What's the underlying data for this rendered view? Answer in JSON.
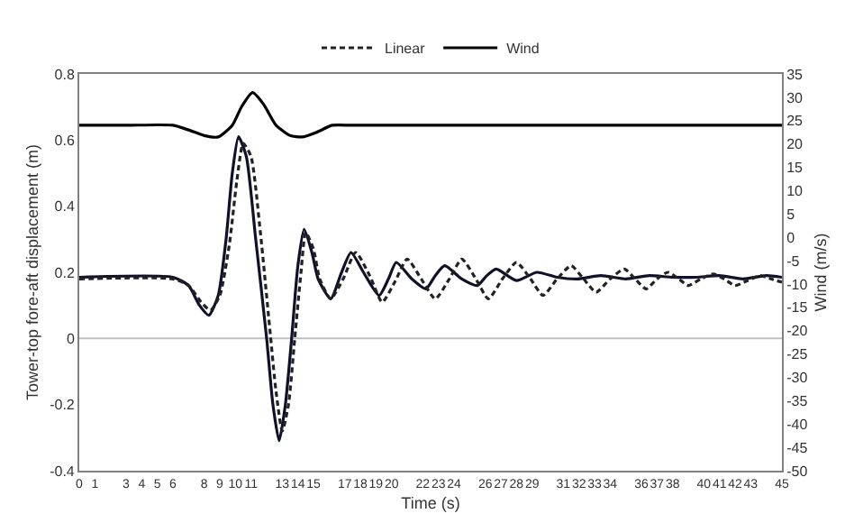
{
  "chart_data": {
    "type": "line",
    "xlabel": "Time (s)",
    "ylabel": "Tower-top fore-aft displacement (m)",
    "y2label": "Wind (m/s)",
    "legend": "top",
    "grid": false,
    "marker": "none",
    "xlim": [
      0,
      45
    ],
    "xticks": [
      0,
      1,
      3,
      4,
      5,
      6,
      8,
      9,
      10,
      11,
      13,
      14,
      15,
      17,
      18,
      19,
      20,
      22,
      23,
      24,
      26,
      27,
      28,
      29,
      31,
      32,
      33,
      34,
      36,
      37,
      38,
      40,
      41,
      42,
      43,
      45
    ],
    "ylim": [
      -0.4,
      0.8
    ],
    "yticks": [
      -0.4,
      -0.2,
      0,
      0.2,
      0.4,
      0.6,
      0.8
    ],
    "y2lim": [
      -50,
      35
    ],
    "y2ticks": [
      -50,
      -45,
      -40,
      -35,
      -30,
      -25,
      -20,
      -15,
      -10,
      -5,
      0,
      5,
      10,
      15,
      20,
      25,
      30,
      35
    ],
    "ref_lines": [
      {
        "axis": "y",
        "value": 0,
        "color": "#bfbfbf"
      }
    ],
    "series": [
      {
        "color": "#10102a",
        "line_style": "solid",
        "x": [
          0,
          6,
          7,
          7.7,
          8.3,
          8.9,
          9.4,
          9.8,
          10.2,
          10.7,
          11.3,
          12,
          12.4,
          12.8,
          13.2,
          13.6,
          14,
          14.4,
          14.9,
          15.3,
          16.1,
          16.8,
          17.4,
          18.2,
          19.2,
          19.8,
          20.3,
          21.3,
          22.2,
          22.8,
          23.4,
          24.5,
          25.5,
          26.1,
          26.7,
          28,
          29.3,
          30.6,
          31.9,
          33.4,
          35,
          36.5,
          38,
          39.5,
          41,
          42.5,
          44,
          45
        ],
        "values": [
          0.185,
          0.185,
          0.16,
          0.1,
          0.07,
          0.13,
          0.3,
          0.5,
          0.61,
          0.55,
          0.3,
          0,
          -0.2,
          -0.31,
          -0.2,
          0,
          0.22,
          0.33,
          0.26,
          0.18,
          0.12,
          0.2,
          0.26,
          0.2,
          0.13,
          0.18,
          0.23,
          0.18,
          0.15,
          0.19,
          0.22,
          0.18,
          0.16,
          0.19,
          0.21,
          0.175,
          0.2,
          0.185,
          0.18,
          0.19,
          0.18,
          0.19,
          0.185,
          0.185,
          0.19,
          0.18,
          0.19,
          0.185
        ]
      },
      {
        "name": "Linear",
        "color": "#222222",
        "line_style": "dashed",
        "x": [
          0,
          6,
          7,
          7.8,
          8.4,
          9,
          9.6,
          10.1,
          10.5,
          11,
          11.6,
          12.2,
          12.6,
          13,
          13.4,
          13.8,
          14.2,
          14.5,
          15,
          15.4,
          16.1,
          16.9,
          17.7,
          18.6,
          19.4,
          20.2,
          21,
          21.9,
          22.8,
          23.7,
          24.5,
          25.4,
          26.2,
          27.1,
          28,
          28.9,
          29.7,
          30.6,
          31.5,
          32.3,
          33.1,
          34,
          34.9,
          35.6,
          36.3,
          37,
          37.7,
          38.4,
          39,
          39.8,
          40.6,
          41.3,
          42,
          42.8,
          43.6,
          44.3,
          45
        ],
        "values": [
          0.18,
          0.18,
          0.16,
          0.11,
          0.085,
          0.13,
          0.28,
          0.48,
          0.59,
          0.55,
          0.32,
          0.03,
          -0.16,
          -0.28,
          -0.2,
          0,
          0.2,
          0.32,
          0.27,
          0.18,
          0.12,
          0.18,
          0.26,
          0.19,
          0.11,
          0.17,
          0.24,
          0.18,
          0.12,
          0.18,
          0.24,
          0.18,
          0.12,
          0.18,
          0.23,
          0.18,
          0.13,
          0.18,
          0.22,
          0.18,
          0.14,
          0.18,
          0.21,
          0.18,
          0.15,
          0.18,
          0.2,
          0.18,
          0.16,
          0.18,
          0.195,
          0.18,
          0.16,
          0.175,
          0.19,
          0.18,
          0.17
        ]
      },
      {
        "name": "Wind",
        "color": "#000000",
        "line_style": "solid",
        "axis": "y2",
        "x": [
          0,
          3,
          6,
          7,
          8,
          8.9,
          9.8,
          10.4,
          11.1,
          11.8,
          12.6,
          13.5,
          14.3,
          15.2,
          16.2,
          17.5,
          20,
          25,
          30,
          35,
          40,
          45
        ],
        "values": [
          24,
          24,
          24,
          23,
          21.8,
          21.5,
          24,
          28,
          31,
          28.5,
          24,
          21.8,
          21.5,
          22.5,
          24,
          24,
          24,
          24,
          24,
          24,
          24,
          24
        ]
      }
    ]
  }
}
